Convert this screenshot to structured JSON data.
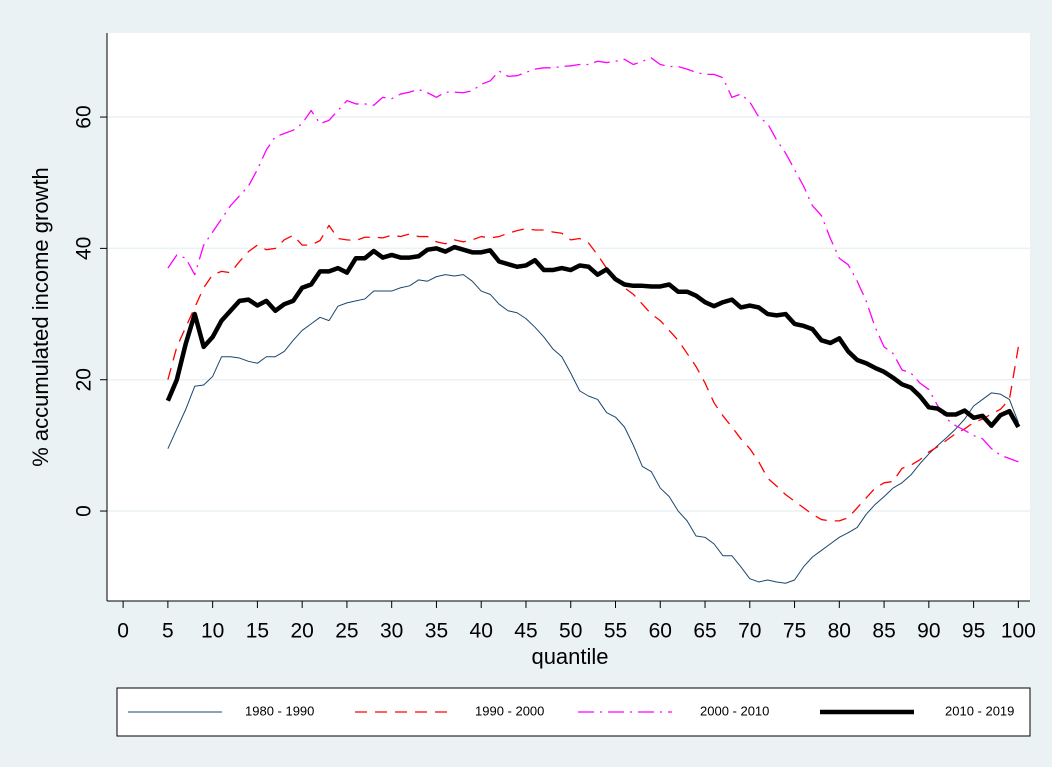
{
  "chart_data": {
    "type": "line",
    "x_label": "quantile",
    "y_label": "% accumulated income growth",
    "x": [
      5,
      6,
      7,
      8,
      9,
      10,
      11,
      12,
      13,
      14,
      15,
      16,
      17,
      18,
      19,
      20,
      21,
      22,
      23,
      24,
      25,
      26,
      27,
      28,
      29,
      30,
      31,
      32,
      33,
      34,
      35,
      36,
      37,
      38,
      39,
      40,
      41,
      42,
      43,
      44,
      45,
      46,
      47,
      48,
      49,
      50,
      51,
      52,
      53,
      54,
      55,
      56,
      57,
      58,
      59,
      60,
      61,
      62,
      63,
      64,
      65,
      66,
      67,
      68,
      69,
      70,
      71,
      72,
      73,
      74,
      75,
      76,
      77,
      78,
      79,
      80,
      81,
      82,
      83,
      84,
      85,
      86,
      87,
      88,
      89,
      90,
      91,
      92,
      93,
      94,
      95,
      96,
      97,
      98,
      99,
      100
    ],
    "series": [
      {
        "name": "1980 - 1990",
        "color": "#1a476f",
        "values": [
          9.5,
          12.5,
          15.5,
          19,
          19.2,
          20.5,
          23.5,
          23.5,
          23.3,
          22.8,
          22.5,
          23.5,
          23.5,
          24.3,
          26,
          27.5,
          28.5,
          29.5,
          29,
          31.2,
          31.7,
          32,
          32.3,
          33.5,
          33.5,
          33.5,
          34,
          34.3,
          35.2,
          35,
          35.7,
          36,
          35.8,
          36,
          35,
          33.5,
          33,
          31.5,
          30.5,
          30.2,
          29.3,
          28,
          26.5,
          24.7,
          23.5,
          21,
          18.3,
          17.5,
          17,
          15,
          14.3,
          12.8,
          10,
          6.8,
          6,
          3.5,
          2.2,
          0,
          -1.5,
          -3.8,
          -4,
          -5,
          -6.8,
          -6.8,
          -8.5,
          -10.3,
          -10.8,
          -10.5,
          -10.8,
          -11,
          -10.5,
          -8.5,
          -7,
          -6,
          -5,
          -4,
          -3.3,
          -2.5,
          -0.5,
          1,
          2.2,
          3.5,
          4.3,
          5.5,
          7.2,
          8.7,
          10,
          11.2,
          12.5,
          14,
          16,
          17,
          18,
          17.8,
          17,
          13.5
        ]
      },
      {
        "name": "1990 - 2000",
        "color": "#ff0000",
        "values": [
          20,
          25,
          28,
          31,
          34,
          36,
          36.5,
          36.3,
          38,
          39.5,
          40.5,
          39.8,
          40,
          41.3,
          42,
          40.5,
          40.5,
          41.2,
          43.5,
          41.5,
          41.3,
          41.2,
          41.7,
          41.7,
          41.6,
          42,
          41.8,
          42.2,
          41.8,
          41.8,
          41,
          40.7,
          41.3,
          41,
          41.3,
          41.8,
          41.6,
          41.8,
          42.3,
          42.7,
          43,
          42.8,
          42.8,
          42.5,
          42.3,
          41.3,
          41.5,
          40.8,
          39,
          37,
          35.3,
          34,
          33,
          31.5,
          30,
          29,
          27.5,
          26,
          24,
          22,
          19.5,
          16.5,
          14.5,
          12.8,
          11,
          9.5,
          7.5,
          5,
          3.8,
          2.5,
          1.5,
          0.5,
          -0.5,
          -1.3,
          -1.5,
          -1.5,
          -1,
          0.5,
          2,
          3.5,
          4.3,
          4.5,
          6.5,
          7,
          7.8,
          9,
          9.8,
          10.8,
          11.8,
          12.5,
          13.5,
          14,
          14.8,
          15.5,
          17,
          25
        ]
      },
      {
        "name": "2000 - 2010",
        "color": "#ff00ff",
        "values": [
          37,
          39,
          38.5,
          36,
          40.5,
          42.5,
          44.5,
          46.5,
          48,
          49.5,
          52,
          55,
          57,
          57.5,
          58,
          59,
          61,
          59,
          59.5,
          61,
          62.5,
          62,
          62,
          61.8,
          63,
          62.8,
          63.5,
          63.8,
          64.2,
          63.7,
          63,
          63.8,
          63.8,
          63.7,
          64,
          65,
          65.5,
          67,
          66.2,
          66.3,
          66.8,
          67.3,
          67.5,
          67.5,
          67.7,
          67.8,
          68,
          68,
          68.5,
          68.3,
          68.5,
          68.8,
          68,
          68.5,
          69,
          68,
          67.7,
          67.7,
          67.3,
          66.8,
          66.5,
          66.5,
          66,
          63,
          63.5,
          62.3,
          60,
          59,
          56.5,
          54.5,
          52,
          49.5,
          46.5,
          45,
          41.5,
          38.5,
          37.5,
          35,
          32,
          28,
          25,
          24,
          21.5,
          21,
          19.5,
          18.5,
          16,
          14,
          13,
          12.3,
          11.5,
          11,
          9.5,
          8.5,
          8,
          7.5
        ]
      },
      {
        "name": "2010 - 2019",
        "color": "#000000",
        "values": [
          16.8,
          20,
          25.5,
          30,
          25,
          26.5,
          29,
          30.5,
          32,
          32.2,
          31.3,
          32,
          30.5,
          31.5,
          32,
          34,
          34.5,
          36.5,
          36.5,
          37,
          36.3,
          38.5,
          38.5,
          39.6,
          38.6,
          39,
          38.6,
          38.6,
          38.8,
          39.8,
          40,
          39.5,
          40.2,
          39.8,
          39.4,
          39.4,
          39.7,
          38,
          37.6,
          37.2,
          37.4,
          38.2,
          36.7,
          36.7,
          37,
          36.7,
          37.4,
          37.2,
          36,
          36.8,
          35.3,
          34.5,
          34.3,
          34.3,
          34.2,
          34.2,
          34.5,
          33.4,
          33.4,
          32.8,
          31.8,
          31.2,
          31.8,
          32.2,
          31,
          31.3,
          31,
          30,
          29.8,
          30,
          28.5,
          28.2,
          27.7,
          26,
          25.6,
          26.3,
          24.3,
          23,
          22.5,
          21.8,
          21.2,
          20.3,
          19.3,
          18.8,
          17.5,
          15.8,
          15.6,
          14.7,
          14.7,
          15.3,
          14.2,
          14.5,
          13,
          14.6,
          15.2,
          12.8
        ]
      }
    ],
    "xlim": [
      -1.8,
      101.3
    ],
    "xticks": [
      0,
      5,
      10,
      15,
      20,
      25,
      30,
      35,
      40,
      45,
      50,
      55,
      60,
      65,
      70,
      75,
      80,
      85,
      90,
      95,
      100
    ],
    "ylim": [
      -13.7,
      72.8
    ],
    "yticks": [
      0,
      20,
      40,
      60
    ],
    "grid": true,
    "legend": "bottom"
  }
}
